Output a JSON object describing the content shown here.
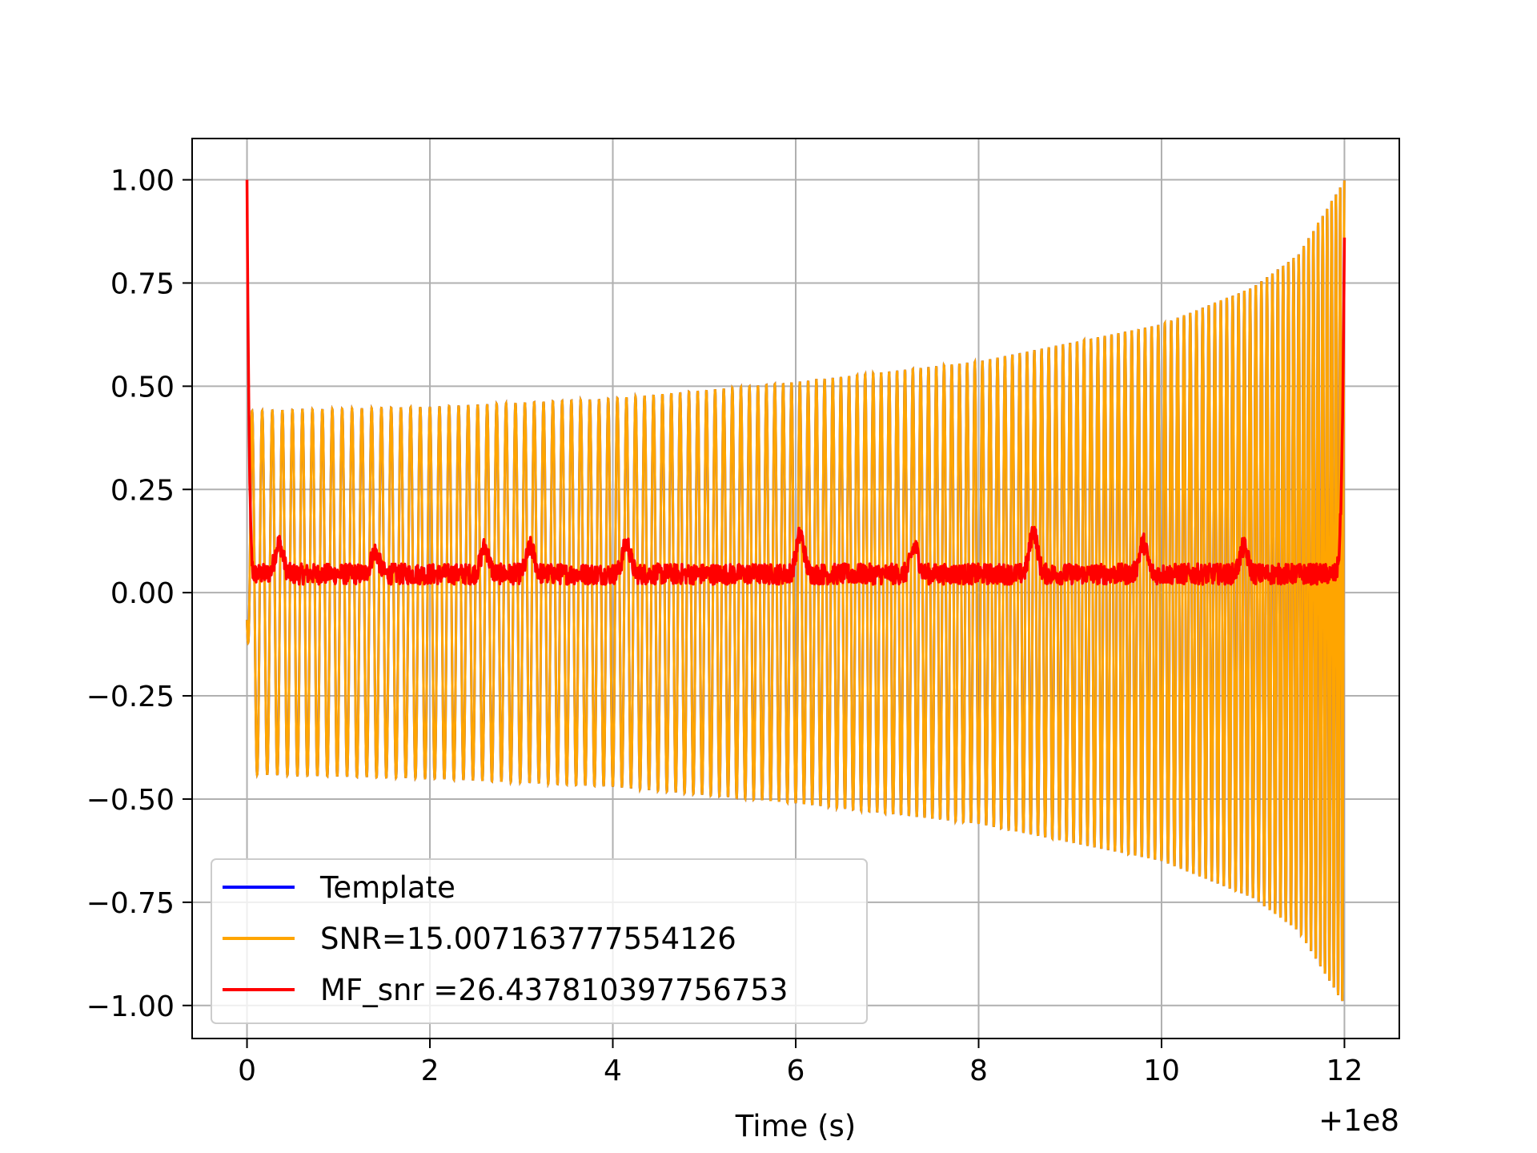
{
  "chart_data": {
    "type": "line",
    "title": "",
    "xlabel": "Time (s)",
    "ylabel": "",
    "x_offset_label": "+1e8",
    "xlim": [
      -0.6,
      12.6
    ],
    "ylim": [
      -1.08,
      1.1
    ],
    "grid": true,
    "legend_position": "lower-left",
    "x_ticks": [
      {
        "value": 0,
        "label": "0"
      },
      {
        "value": 2,
        "label": "2"
      },
      {
        "value": 4,
        "label": "4"
      },
      {
        "value": 6,
        "label": "6"
      },
      {
        "value": 8,
        "label": "8"
      },
      {
        "value": 10,
        "label": "10"
      },
      {
        "value": 12,
        "label": "12"
      }
    ],
    "y_ticks": [
      {
        "value": 1.0,
        "label": "1.00"
      },
      {
        "value": 0.75,
        "label": "0.75"
      },
      {
        "value": 0.5,
        "label": "0.50"
      },
      {
        "value": 0.25,
        "label": "0.25"
      },
      {
        "value": 0.0,
        "label": "0.00"
      },
      {
        "value": -0.25,
        "label": "−0.25"
      },
      {
        "value": -0.5,
        "label": "−0.50"
      },
      {
        "value": -0.75,
        "label": "−0.75"
      },
      {
        "value": -1.0,
        "label": "−1.00"
      }
    ],
    "series": [
      {
        "name": "Template",
        "color": "#0000ff",
        "description": "chirp waveform, hidden beneath SNR series",
        "time_range": [
          0,
          12
        ],
        "envelope_times": [
          0,
          2,
          4,
          6,
          8,
          10,
          11,
          11.5,
          12
        ],
        "envelope_amplitudes": [
          0.44,
          0.45,
          0.47,
          0.51,
          0.56,
          0.65,
          0.74,
          0.82,
          1.0
        ],
        "cycles_per_second": [
          9,
          9.5,
          10,
          11,
          12,
          14,
          16,
          18,
          22
        ]
      },
      {
        "name": "SNR=15.007163777554126",
        "color": "#ffa500",
        "time_range": [
          0,
          12
        ],
        "envelope_times": [
          0,
          2,
          4,
          6,
          8,
          10,
          11,
          11.5,
          12
        ],
        "envelope_amplitudes": [
          0.44,
          0.45,
          0.47,
          0.51,
          0.56,
          0.65,
          0.74,
          0.82,
          1.0
        ],
        "cycles_per_second": [
          9,
          9.5,
          10,
          11,
          12,
          14,
          16,
          18,
          22
        ]
      },
      {
        "name": "MF_snr =26.437810397756753",
        "color": "#ff0000",
        "time_range": [
          0,
          12
        ],
        "start_value": 1.0,
        "end_value": 0.86,
        "baseline": 0.045,
        "noise_peaks": [
          {
            "x": 0.35,
            "y": 0.12
          },
          {
            "x": 1.4,
            "y": 0.1
          },
          {
            "x": 2.6,
            "y": 0.11
          },
          {
            "x": 3.1,
            "y": 0.11
          },
          {
            "x": 4.15,
            "y": 0.12
          },
          {
            "x": 6.05,
            "y": 0.14
          },
          {
            "x": 7.3,
            "y": 0.11
          },
          {
            "x": 8.6,
            "y": 0.15
          },
          {
            "x": 9.8,
            "y": 0.12
          },
          {
            "x": 10.9,
            "y": 0.11
          }
        ]
      }
    ]
  }
}
